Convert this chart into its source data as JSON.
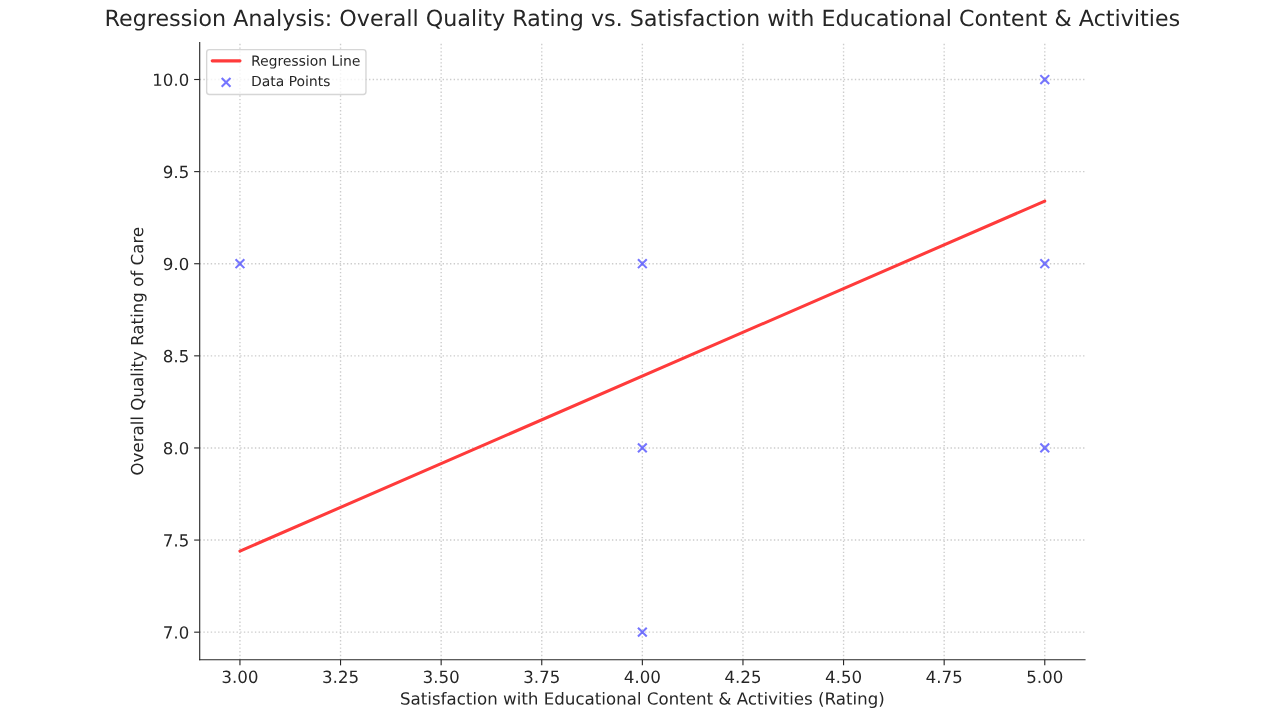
{
  "chart_data": {
    "type": "scatter",
    "title": "Regression Analysis: Overall Quality Rating vs. Satisfaction with Educational Content & Activities",
    "xlabel": "Satisfaction with Educational Content & Activities (Rating)",
    "ylabel": "Overall Quality Rating of Care",
    "series": [
      {
        "name": "Regression Line",
        "type": "line",
        "color": "#ff3b3b",
        "x": [
          3.0,
          5.0
        ],
        "values": [
          7.44,
          9.34
        ]
      },
      {
        "name": "Data Points",
        "color": "#3b3bff",
        "marker": "cross",
        "x": [
          3,
          4,
          4,
          4,
          5,
          5,
          5
        ],
        "values": [
          9,
          9,
          8,
          7,
          10,
          9,
          8
        ]
      }
    ],
    "xlim": [
      2.9,
      5.1
    ],
    "ylim": [
      6.85,
      10.2
    ],
    "xticks": [
      {
        "value": 3.0,
        "label": "3.00"
      },
      {
        "value": 3.25,
        "label": "3.25"
      },
      {
        "value": 3.5,
        "label": "3.50"
      },
      {
        "value": 3.75,
        "label": "3.75"
      },
      {
        "value": 4.0,
        "label": "4.00"
      },
      {
        "value": 4.25,
        "label": "4.25"
      },
      {
        "value": 4.5,
        "label": "4.50"
      },
      {
        "value": 4.75,
        "label": "4.75"
      },
      {
        "value": 5.0,
        "label": "5.00"
      }
    ],
    "yticks": [
      {
        "value": 7.0,
        "label": "7.0"
      },
      {
        "value": 7.5,
        "label": "7.5"
      },
      {
        "value": 8.0,
        "label": "8.0"
      },
      {
        "value": 8.5,
        "label": "8.5"
      },
      {
        "value": 9.0,
        "label": "9.0"
      },
      {
        "value": 9.5,
        "label": "9.5"
      },
      {
        "value": 10.0,
        "label": "10.0"
      }
    ],
    "grid": true,
    "legend": "top left"
  }
}
